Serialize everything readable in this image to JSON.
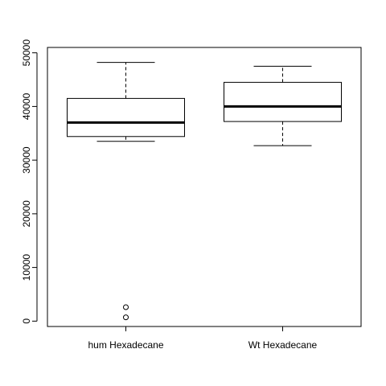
{
  "chart_data": {
    "type": "boxplot",
    "title": "",
    "xlabel": "",
    "ylabel": "",
    "ylim": [
      -1000,
      51000
    ],
    "y_ticks": [
      0,
      10000,
      20000,
      30000,
      40000,
      50000
    ],
    "y_tick_labels": [
      "0",
      "10000",
      "20000",
      "30000",
      "40000",
      "50000"
    ],
    "categories": [
      "hum Hexadecane",
      "Wt Hexadecane"
    ],
    "boxes": [
      {
        "label": "hum Hexadecane",
        "whisker_low": 33500,
        "q1": 34400,
        "median": 37000,
        "q3": 41500,
        "whisker_high": 48200,
        "outliers": [
          2600,
          700
        ]
      },
      {
        "label": "Wt Hexadecane",
        "whisker_low": 32700,
        "q1": 37200,
        "median": 40000,
        "q3": 44500,
        "whisker_high": 47500,
        "outliers": []
      }
    ],
    "grid": false,
    "colors": {
      "line": "#000000",
      "background": "#ffffff"
    }
  }
}
